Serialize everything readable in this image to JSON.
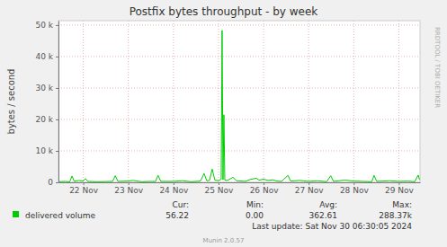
{
  "chart_data": {
    "type": "line",
    "title": "Postfix bytes throughput - by week",
    "y_label": "bytes / second",
    "x": [
      21.96,
      22.1,
      22.2,
      22.25,
      22.3,
      22.4,
      22.5,
      22.55,
      22.6,
      22.8,
      23.0,
      23.15,
      23.21,
      23.27,
      23.5,
      23.6,
      23.8,
      24.0,
      24.1,
      24.16,
      24.22,
      24.5,
      24.7,
      24.9,
      25.1,
      25.18,
      25.24,
      25.3,
      25.36,
      25.42,
      25.5,
      25.56,
      25.58,
      25.6,
      25.62,
      25.64,
      25.7,
      25.82,
      25.9,
      26.0,
      26.1,
      26.2,
      26.34,
      26.4,
      26.5,
      26.6,
      26.7,
      26.8,
      26.9,
      27.04,
      27.1,
      27.3,
      27.5,
      27.7,
      27.9,
      27.99,
      28.05,
      28.3,
      28.5,
      28.7,
      28.9,
      28.95,
      29.01,
      29.3,
      29.5,
      29.7,
      29.85,
      29.93,
      29.96
    ],
    "series": [
      {
        "name": "delivered volume",
        "color": "#00cc00",
        "values": [
          200,
          300,
          150,
          2000,
          300,
          600,
          400,
          1200,
          300,
          200,
          250,
          300,
          2100,
          300,
          400,
          600,
          200,
          300,
          250,
          2200,
          300,
          300,
          500,
          200,
          400,
          2800,
          500,
          600,
          4200,
          700,
          500,
          1000,
          48300,
          800,
          21500,
          700,
          600,
          1600,
          500,
          400,
          300,
          900,
          1300,
          700,
          1000,
          600,
          800,
          400,
          300,
          2200,
          400,
          600,
          300,
          500,
          200,
          2100,
          300,
          700,
          400,
          300,
          200,
          2200,
          300,
          500,
          300,
          400,
          200,
          2300,
          800
        ]
      }
    ],
    "xlim": [
      21.95,
      29.97
    ],
    "xticks": [
      {
        "value": 22.5,
        "label": "22 Nov"
      },
      {
        "value": 23.5,
        "label": "23 Nov"
      },
      {
        "value": 24.5,
        "label": "24 Nov"
      },
      {
        "value": 25.5,
        "label": "25 Nov"
      },
      {
        "value": 26.5,
        "label": "26 Nov"
      },
      {
        "value": 27.5,
        "label": "27 Nov"
      },
      {
        "value": 28.5,
        "label": "28 Nov"
      },
      {
        "value": 29.5,
        "label": "29 Nov"
      }
    ],
    "ylim": [
      0,
      51400
    ],
    "yticks": [
      0,
      {
        "value": 10000,
        "label": "10 k"
      },
      {
        "value": 20000,
        "label": "20 k"
      },
      {
        "value": 30000,
        "label": "30 k"
      },
      {
        "value": 40000,
        "label": "40 k"
      },
      {
        "value": 50000,
        "label": "50 k"
      }
    ],
    "grid": true,
    "stats": [
      {
        "label": "Cur:",
        "value": "56.22"
      },
      {
        "label": "Min:",
        "value": "0.00"
      },
      {
        "label": "Avg:",
        "value": "362.61"
      },
      {
        "label": "Max:",
        "value": "288.37k"
      }
    ],
    "last_update": "Last update: Sat Nov 30 06:30:05 2024",
    "footer": "Munin 2.0.57",
    "watermark": "RRDTOOL / TOBI OETIKER"
  }
}
